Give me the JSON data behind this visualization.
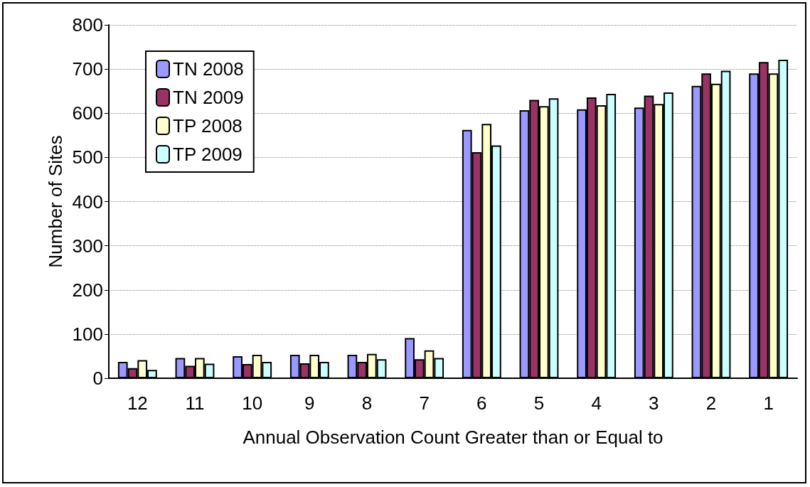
{
  "chart_data": {
    "type": "bar",
    "xlabel": "Annual Observation Count Greater than or Equal to",
    "ylabel": "Number of Sites",
    "categories": [
      "12",
      "11",
      "10",
      "9",
      "8",
      "7",
      "6",
      "5",
      "4",
      "3",
      "2",
      "1"
    ],
    "series": [
      {
        "name": "TN 2008",
        "color": "#9999ff",
        "values": [
          37,
          46,
          50,
          53,
          53,
          91,
          562,
          607,
          609,
          613,
          662,
          690
        ]
      },
      {
        "name": "TN 2009",
        "color": "#993366",
        "values": [
          23,
          28,
          32,
          34,
          37,
          43,
          512,
          630,
          636,
          640,
          690,
          716
        ]
      },
      {
        "name": "TP 2008",
        "color": "#ffffcc",
        "values": [
          41,
          46,
          53,
          53,
          55,
          63,
          576,
          616,
          618,
          621,
          667,
          690
        ]
      },
      {
        "name": "TP 2009",
        "color": "#ccffff",
        "values": [
          19,
          33,
          37,
          37,
          43,
          46,
          527,
          634,
          644,
          647,
          696,
          721
        ]
      }
    ],
    "ylim": [
      0,
      800
    ],
    "yticks": [
      0,
      100,
      200,
      300,
      400,
      500,
      600,
      700,
      800
    ],
    "grid": "y",
    "legend": "top left"
  }
}
